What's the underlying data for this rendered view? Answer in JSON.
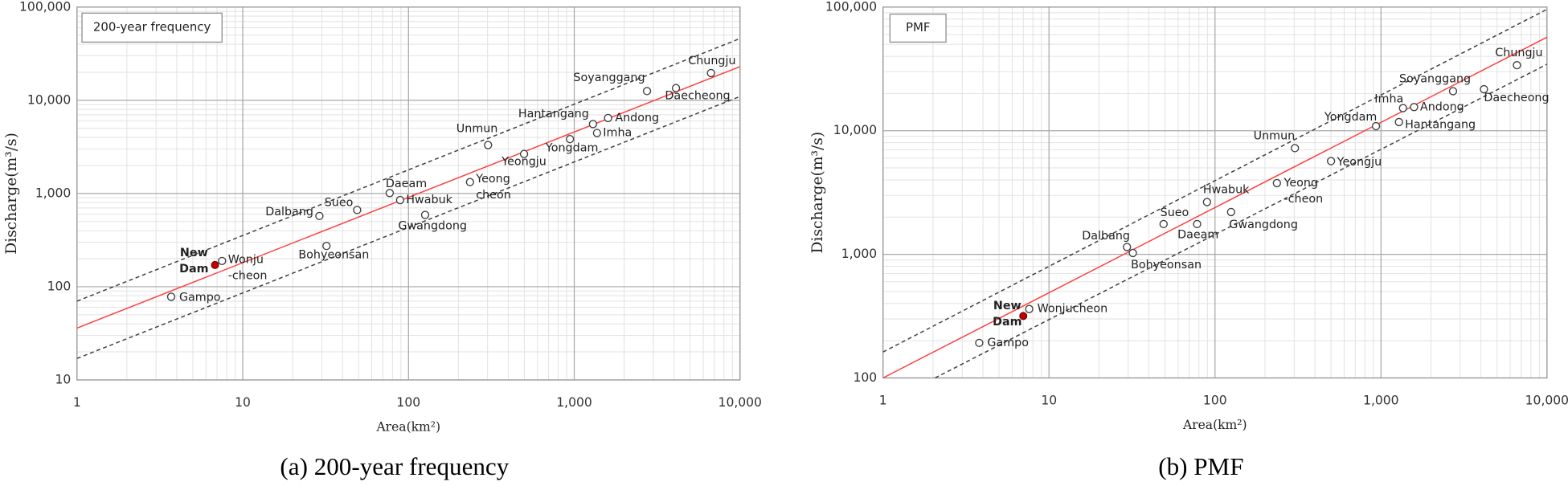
{
  "chart_data": [
    {
      "type": "scatter",
      "legend_box": "200-year frequency",
      "caption": "(a) 200-year frequency",
      "xlabel": "Area(km²)",
      "ylabel": "Discharge(m³/s)",
      "log_x": true,
      "log_y": true,
      "grid": true,
      "minor_grid": true,
      "xlim": [
        1,
        10000
      ],
      "ylim": [
        10,
        100000
      ],
      "xticks": [
        1,
        10,
        100,
        {
          "value": 1000,
          "label": "1,000"
        },
        {
          "value": 10000,
          "label": "10,000"
        }
      ],
      "yticks": [
        10,
        100,
        {
          "value": 1000,
          "label": "1,000"
        },
        {
          "value": 10000,
          "label": "10,000"
        },
        {
          "value": 100000,
          "label": "100,000"
        }
      ],
      "points": {
        "color": "#404040",
        "labels": [
          [
            "Gampo"
          ],
          [
            "Wonju",
            "-cheon"
          ],
          [
            "Bohyeonsan"
          ],
          [
            "Dalbang"
          ],
          [
            "Sueo"
          ],
          [
            "Daeam"
          ],
          [
            "Hwabuk"
          ],
          [
            "Gwangdong"
          ],
          [
            "Yeong",
            "cheon"
          ],
          [
            "Unmun"
          ],
          [
            "Yeongju"
          ],
          [
            "Yongdam"
          ],
          [
            "Hantangang"
          ],
          [
            "Andong"
          ],
          [
            "Imha"
          ],
          [
            "Soyanggang"
          ],
          [
            "Daecheong"
          ],
          [
            "Chungju"
          ]
        ],
        "x": [
          3.7,
          7.5,
          32,
          29,
          49,
          77,
          89,
          126,
          235,
          302,
          498,
          942,
          1297,
          1600,
          1372,
          2748,
          4110,
          6683
        ],
        "y": [
          78,
          189,
          274,
          574,
          666,
          1012,
          851,
          589,
          1327,
          3311,
          2654,
          3837,
          5560,
          6457,
          4457,
          12560,
          13520,
          19600
        ]
      },
      "new_dam": {
        "label": [
          "New",
          "Dam"
        ],
        "x": 6.8,
        "y": 171,
        "color": "#c00000"
      },
      "lines": [
        {
          "color": "#ff4040",
          "dashed": false,
          "x": [
            1,
            10000
          ],
          "y": [
            36,
            23000
          ]
        },
        {
          "color": "#404040",
          "dashed": true,
          "x": [
            1,
            10000
          ],
          "y": [
            70,
            46000
          ]
        },
        {
          "color": "#404040",
          "dashed": true,
          "x": [
            1,
            10000
          ],
          "y": [
            17,
            11000
          ]
        }
      ]
    },
    {
      "type": "scatter",
      "legend_box": "PMF",
      "caption": "(b) PMF",
      "xlabel": "Area(km²)",
      "ylabel": "Discharge(m³/s)",
      "log_x": true,
      "log_y": true,
      "grid": true,
      "minor_grid": true,
      "xlim": [
        1,
        10000
      ],
      "ylim": [
        100,
        100000
      ],
      "xticks": [
        1,
        10,
        100,
        {
          "value": 1000,
          "label": "1,000"
        },
        {
          "value": 10000,
          "label": "10,000"
        }
      ],
      "yticks": [
        100,
        {
          "value": 1000,
          "label": "1,000"
        },
        {
          "value": 10000,
          "label": "10,000"
        },
        {
          "value": 100000,
          "label": "100,000"
        }
      ],
      "points": {
        "color": "#404040",
        "labels": [
          [
            "Gampo"
          ],
          [
            "Wonjucheon"
          ],
          [
            "Dalbang"
          ],
          [
            "Bohyeonsan"
          ],
          [
            "Sueo"
          ],
          [
            "Daeam"
          ],
          [
            "Hwabuk"
          ],
          [
            "Gwangdong"
          ],
          [
            "Yeong",
            "-cheon"
          ],
          [
            "Unmun"
          ],
          [
            "Yeongju"
          ],
          [
            "Yongdam"
          ],
          [
            "Hantangang"
          ],
          [
            "Imha"
          ],
          [
            "Andong"
          ],
          [
            "Soyanggang"
          ],
          [
            "Daecheong"
          ],
          [
            "Chungju"
          ]
        ],
        "x": [
          3.8,
          7.6,
          29.5,
          32,
          49,
          78,
          89.5,
          125,
          236,
          303,
          500,
          933,
          1283,
          1357,
          1582,
          2716,
          4170,
          6590
        ],
        "y": [
          192,
          361,
          1146,
          1025,
          1758,
          1758,
          2647,
          2198,
          3770,
          7230,
          5680,
          10890,
          11750,
          15240,
          15530,
          20890,
          21680,
          33900
        ]
      },
      "new_dam": {
        "label": [
          "New",
          "Dam"
        ],
        "x": 7.0,
        "y": 317,
        "color": "#c00000"
      },
      "lines": [
        {
          "color": "#ff4040",
          "dashed": false,
          "x": [
            1,
            10000
          ],
          "y": [
            100,
            57100
          ]
        },
        {
          "color": "#404040",
          "dashed": true,
          "x": [
            1,
            10000
          ],
          "y": [
            162,
            96000
          ]
        },
        {
          "color": "#404040",
          "dashed": true,
          "x": [
            2.06,
            10000
          ],
          "y": [
            100,
            34500
          ]
        }
      ]
    }
  ]
}
